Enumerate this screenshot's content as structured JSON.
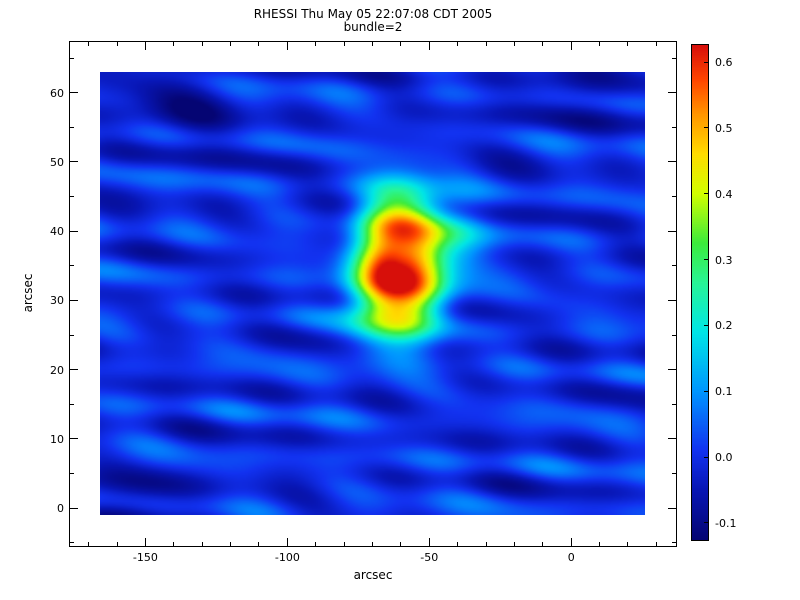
{
  "chart_data": {
    "type": "heatmap",
    "title": "RHESSI Thu May 05 22:07:08 CDT 2005",
    "subtitle": "bundle=2",
    "xlabel": "arcsec",
    "ylabel": "arcsec",
    "x_range_arcsec": [
      -166,
      26
    ],
    "y_range_arcsec": [
      -1,
      63
    ],
    "x_ticks": [
      -150,
      -100,
      -50,
      0
    ],
    "y_ticks": [
      0,
      10,
      20,
      30,
      40,
      50,
      60
    ],
    "x_minor_step": 10,
    "y_minor_step": 5,
    "value_min": -0.126,
    "value_max": 0.626,
    "colorbar_ticks": [
      0.6,
      0.5,
      0.4,
      0.3,
      0.2,
      0.1,
      0.0,
      -0.1
    ],
    "peak": {
      "x_arcsec": -60,
      "y_arcsec": 35.5,
      "value": 0.63
    },
    "background_range": [
      -0.1,
      0.1
    ],
    "field_model": {
      "sources": [
        {
          "x": -60,
          "y": 35.5,
          "sx": 11,
          "sy": 7.5,
          "amp": 0.62,
          "pow": 1.35
        },
        {
          "x": -40,
          "y": 38,
          "sx": 7,
          "sy": 5,
          "amp": 0.12,
          "pow": 1
        },
        {
          "x": -73,
          "y": 29,
          "sx": 8,
          "sy": 5,
          "amp": 0.1,
          "pow": 1
        },
        {
          "x": -150,
          "y": 1,
          "sx": 12,
          "sy": 3.5,
          "amp": -0.08,
          "pow": 1
        },
        {
          "x": -138,
          "y": 58,
          "sx": 16,
          "sy": 4.5,
          "amp": -0.07,
          "pow": 1
        },
        {
          "x": -5,
          "y": 59,
          "sx": 18,
          "sy": 4,
          "amp": -0.05,
          "pow": 1
        }
      ],
      "ripples": [
        {
          "amp": 0.03,
          "kx": 0.01,
          "ky": 0.95,
          "phase": 0.5
        },
        {
          "amp": 0.026,
          "kx": 0.06,
          "ky": 0.8,
          "phase": 2.0
        },
        {
          "amp": 0.02,
          "kx": 0.15,
          "ky": 0.55,
          "phase": 4.2
        },
        {
          "amp": 0.018,
          "kx": 0.18,
          "ky": 0.12,
          "phase": 1.0
        },
        {
          "amp": 0.014,
          "kx": 0.08,
          "ky": 0.3,
          "phase": 3.1
        },
        {
          "amp": 0.012,
          "kx": 0.04,
          "ky": 1.3,
          "phase": 5.5
        }
      ]
    },
    "colormap_stops": [
      {
        "t": 0.0,
        "rgb": [
          5,
          5,
          115
        ]
      },
      {
        "t": 0.1,
        "rgb": [
          8,
          22,
          180
        ]
      },
      {
        "t": 0.18,
        "rgb": [
          18,
          50,
          240
        ]
      },
      {
        "t": 0.3,
        "rgb": [
          0,
          150,
          255
        ]
      },
      {
        "t": 0.42,
        "rgb": [
          0,
          230,
          230
        ]
      },
      {
        "t": 0.52,
        "rgb": [
          40,
          245,
          150
        ]
      },
      {
        "t": 0.6,
        "rgb": [
          60,
          235,
          60
        ]
      },
      {
        "t": 0.7,
        "rgb": [
          210,
          255,
          0
        ]
      },
      {
        "t": 0.78,
        "rgb": [
          255,
          220,
          0
        ]
      },
      {
        "t": 0.86,
        "rgb": [
          255,
          150,
          0
        ]
      },
      {
        "t": 0.93,
        "rgb": [
          255,
          70,
          0
        ]
      },
      {
        "t": 1.0,
        "rgb": [
          215,
          15,
          10
        ]
      }
    ]
  },
  "colors": {
    "background": "#ffffff",
    "axis": "#000000"
  }
}
